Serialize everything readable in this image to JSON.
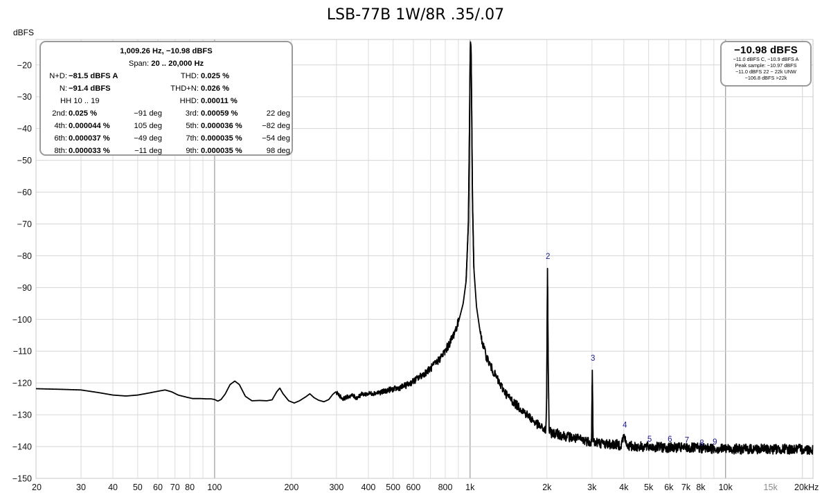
{
  "chart_data": {
    "type": "line",
    "title": "LSB-77B 1W/8R .35/.07",
    "ylabel": "dBFS",
    "xlabel": "",
    "x_scale": "log",
    "xlim": [
      20,
      22000
    ],
    "ylim": [
      -150,
      -12
    ],
    "grid": true,
    "y_ticks": [
      -20,
      -30,
      -40,
      -50,
      -60,
      -70,
      -80,
      -90,
      -100,
      -110,
      -120,
      -130,
      -140,
      -150
    ],
    "y_tick_labels": [
      "−20",
      "−30",
      "−40",
      "−50",
      "−60",
      "−70",
      "−80",
      "−90",
      "−100",
      "−110",
      "−120",
      "−130",
      "−140",
      "−150"
    ],
    "x_ticks": [
      {
        "v": 20,
        "label": "20"
      },
      {
        "v": 30,
        "label": "30"
      },
      {
        "v": 40,
        "label": "40"
      },
      {
        "v": 50,
        "label": "50"
      },
      {
        "v": 60,
        "label": "60"
      },
      {
        "v": 70,
        "label": "70"
      },
      {
        "v": 80,
        "label": "80"
      },
      {
        "v": 100,
        "label": "100"
      },
      {
        "v": 200,
        "label": "200"
      },
      {
        "v": 300,
        "label": "300"
      },
      {
        "v": 400,
        "label": "400"
      },
      {
        "v": 500,
        "label": "500"
      },
      {
        "v": 600,
        "label": "600"
      },
      {
        "v": 800,
        "label": "800"
      },
      {
        "v": 1000,
        "label": "1k"
      },
      {
        "v": 2000,
        "label": "2k"
      },
      {
        "v": 3000,
        "label": "3k"
      },
      {
        "v": 4000,
        "label": "4k"
      },
      {
        "v": 5000,
        "label": "5k"
      },
      {
        "v": 6000,
        "label": "6k"
      },
      {
        "v": 7000,
        "label": "7k"
      },
      {
        "v": 8000,
        "label": "8k"
      },
      {
        "v": 10000,
        "label": "10k"
      },
      {
        "v": 15000,
        "label": "15k",
        "light": true
      },
      {
        "v": 20000,
        "label": "20kHz"
      }
    ],
    "series": [
      {
        "points": [
          [
            20,
            -121.8
          ],
          [
            25,
            -122
          ],
          [
            30,
            -122.2
          ],
          [
            35,
            -123
          ],
          [
            40,
            -123.8
          ],
          [
            45,
            -124.1
          ],
          [
            50,
            -123.8
          ],
          [
            55,
            -123.2
          ],
          [
            60,
            -122.6
          ],
          [
            64,
            -122.2
          ],
          [
            68,
            -122.8
          ],
          [
            72,
            -123.8
          ],
          [
            78,
            -124.5
          ],
          [
            82,
            -124.9
          ],
          [
            88,
            -124.9
          ],
          [
            93,
            -125
          ],
          [
            97,
            -125
          ],
          [
            100,
            -125.2
          ],
          [
            103,
            -125.7
          ],
          [
            106,
            -125.2
          ],
          [
            110,
            -123.5
          ],
          [
            115,
            -120.5
          ],
          [
            120,
            -119.4
          ],
          [
            125,
            -120.5
          ],
          [
            132,
            -124.2
          ],
          [
            140,
            -125.6
          ],
          [
            150,
            -125.5
          ],
          [
            160,
            -125.6
          ],
          [
            168,
            -125.3
          ],
          [
            175,
            -122.8
          ],
          [
            180,
            -121.6
          ],
          [
            185,
            -123.3
          ],
          [
            195,
            -125.6
          ],
          [
            205,
            -126.3
          ],
          [
            215,
            -125.6
          ],
          [
            228,
            -124.3
          ],
          [
            236,
            -123.4
          ],
          [
            245,
            -124.6
          ],
          [
            255,
            -125.4
          ],
          [
            268,
            -125.9
          ],
          [
            280,
            -125.2
          ],
          [
            290,
            -123.6
          ],
          [
            298,
            -122.8
          ],
          [
            308,
            -123.9
          ],
          [
            318,
            -125
          ],
          [
            330,
            -124.4
          ],
          [
            345,
            -123.9
          ],
          [
            360,
            -124.7
          ],
          [
            375,
            -123.6
          ],
          [
            400,
            -123.4
          ],
          [
            420,
            -123.2
          ],
          [
            450,
            -122.9
          ],
          [
            480,
            -122.2
          ],
          [
            520,
            -121.7
          ],
          [
            560,
            -120.8
          ],
          [
            600,
            -119.5
          ],
          [
            650,
            -117.5
          ],
          [
            700,
            -115.5
          ],
          [
            750,
            -113
          ],
          [
            800,
            -110
          ],
          [
            850,
            -106
          ],
          [
            900,
            -101
          ],
          [
            940,
            -95
          ],
          [
            965,
            -88
          ],
          [
            985,
            -70
          ],
          [
            995,
            -40
          ],
          [
            1000,
            -20
          ],
          [
            1004,
            -12.8
          ],
          [
            1009,
            -14.5
          ],
          [
            1014,
            -30
          ],
          [
            1022,
            -62
          ],
          [
            1035,
            -84
          ],
          [
            1060,
            -96
          ],
          [
            1100,
            -105
          ],
          [
            1150,
            -111
          ],
          [
            1200,
            -114.5
          ],
          [
            1300,
            -120
          ],
          [
            1400,
            -124
          ],
          [
            1500,
            -126.5
          ],
          [
            1600,
            -128.5
          ],
          [
            1700,
            -130.5
          ],
          [
            1800,
            -132.5
          ],
          [
            1900,
            -134
          ],
          [
            1980,
            -135
          ],
          [
            1995,
            -125
          ],
          [
            2010,
            -84
          ],
          [
            2020,
            -110
          ],
          [
            2040,
            -135.5
          ],
          [
            2200,
            -136
          ],
          [
            2400,
            -136.8
          ],
          [
            2600,
            -137.5
          ],
          [
            2800,
            -138
          ],
          [
            2990,
            -138.5
          ],
          [
            3010,
            -116
          ],
          [
            3030,
            -138.5
          ],
          [
            3300,
            -139
          ],
          [
            3600,
            -139.3
          ],
          [
            3900,
            -139.5
          ],
          [
            4010,
            -136.2
          ],
          [
            4100,
            -139.8
          ],
          [
            4500,
            -140
          ],
          [
            5000,
            -140.1
          ],
          [
            6000,
            -140.3
          ],
          [
            7000,
            -140.4
          ],
          [
            8000,
            -140.5
          ],
          [
            9000,
            -140.6
          ],
          [
            10000,
            -140.7
          ],
          [
            12000,
            -140.8
          ],
          [
            15000,
            -140.8
          ],
          [
            18000,
            -140.8
          ],
          [
            22000,
            -140.9
          ]
        ]
      }
    ],
    "harmonic_labels": [
      {
        "text": "2",
        "x": 2018,
        "y": -81
      },
      {
        "text": "3",
        "x": 3027,
        "y": -113
      },
      {
        "text": "4",
        "x": 4036,
        "y": -134
      },
      {
        "text": "5",
        "x": 5046,
        "y": -138.5
      },
      {
        "text": "6",
        "x": 6055,
        "y": -138.5
      },
      {
        "text": "7",
        "x": 7065,
        "y": -138.8
      },
      {
        "text": "8",
        "x": 8074,
        "y": -139.7
      },
      {
        "text": "9",
        "x": 9083,
        "y": -139.3
      }
    ]
  },
  "stats": {
    "header_freq": "1,009.26 Hz, −10.98 dBFS",
    "span_label": "Span:",
    "span_value": "20 .. 20,000 Hz",
    "nd_label": "N+D:",
    "nd_value": "−81.5 dBFS A",
    "thd_label": "THD:",
    "thd_value": "0.025 %",
    "n_label": "N:",
    "n_value": "−91.4 dBFS",
    "thdn_label": "THD+N:",
    "thdn_value": "0.026 %",
    "hh_label": "HH 10 .. 19",
    "hhd_label": "HHD:",
    "hhd_value": "0.00011 %",
    "harmonics": [
      {
        "l1": "2nd:",
        "v1": "0.025 %",
        "p1": "−91 deg",
        "l2": "3rd:",
        "v2": "0.00059 %",
        "p2": "22 deg"
      },
      {
        "l1": "4th:",
        "v1": "0.000044 %",
        "p1": "105 deg",
        "l2": "5th:",
        "v2": "0.000036 %",
        "p2": "−82 deg"
      },
      {
        "l1": "6th:",
        "v1": "0.000037 %",
        "p1": "−49 deg",
        "l2": "7th:",
        "v2": "0.000035 %",
        "p2": "−54 deg"
      },
      {
        "l1": "8th:",
        "v1": "0.000033 %",
        "p1": "−11 deg",
        "l2": "9th:",
        "v2": "0.000035 %",
        "p2": "98 deg"
      }
    ]
  },
  "level": {
    "main": "−10.98 dBFS",
    "line1": "−11.0 dBFS C, −10.9 dBFS A",
    "line2": "Peak sample: −10.97 dBFS",
    "line3": "−11.0 dBFS 22 − 22k UNW",
    "line4": "−106.8 dBFS >22k"
  }
}
